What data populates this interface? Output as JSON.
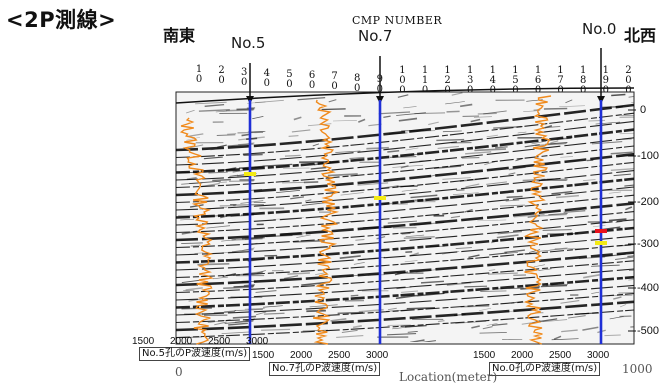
{
  "title": "<2P測線>",
  "direction_left": "南東",
  "direction_right": "北西",
  "well_labels": [
    "No.5",
    "No.7",
    "No.0"
  ],
  "cmp_header": "CMP NUMBER",
  "cmp_numbers": [
    "10",
    "20",
    "30",
    "40",
    "50",
    "60",
    "70",
    "80",
    "90",
    "100",
    "110",
    "120",
    "130",
    "140",
    "150",
    "160",
    "170",
    "180",
    "190",
    "200"
  ],
  "depth_ticks": [
    "0",
    "-100",
    "-200",
    "-300",
    "-400",
    "-500"
  ],
  "velocity_ticks": [
    "1500",
    "2000",
    "2500",
    "3000"
  ],
  "velocity_captions": [
    "No.5孔のP波速度(m/s)",
    "No.7孔のP波速度(m/s)",
    "No.0孔のP波速度(m/s)"
  ],
  "location_label": "Location(meter)",
  "location_ticks": [
    "0",
    "1000"
  ],
  "colors": {
    "well_line": "#1f2fd6",
    "velocity_log": "#f08a1c",
    "marker_yellow": "#f3ea14",
    "marker_red": "#e8101a"
  }
}
